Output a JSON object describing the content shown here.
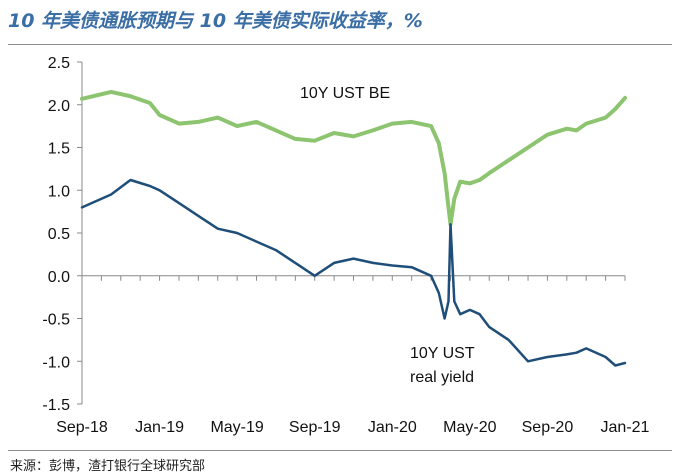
{
  "title": "10 年美债通胀预期与 10 年美债实际收益率，%",
  "source": "来源：彭博，渣打银行全球研究部",
  "chart_data": {
    "type": "line",
    "title": "10 年美债通胀预期与 10 年美债实际收益率，%",
    "xlabel": "",
    "ylabel": "",
    "ylim": [
      -1.5,
      2.5
    ],
    "yticks": [
      "2.5",
      "2.0",
      "1.5",
      "1.0",
      "0.5",
      "0.0",
      "-0.5",
      "-1.0",
      "-1.5"
    ],
    "ytick_values": [
      2.5,
      2.0,
      1.5,
      1.0,
      0.5,
      0.0,
      -0.5,
      -1.0,
      -1.5
    ],
    "xticks": [
      "Sep-18",
      "Jan-19",
      "May-19",
      "Sep-19",
      "Jan-20",
      "May-20",
      "Sep-20",
      "Jan-21"
    ],
    "xlim_months": [
      0,
      28
    ],
    "x_month_offsets": [
      0,
      1.5,
      2.5,
      3.5,
      4,
      5,
      6,
      7,
      8,
      9,
      10,
      11,
      12,
      13,
      14,
      15,
      16,
      17,
      18,
      18.4,
      18.7,
      18.9,
      19,
      19.2,
      19.5,
      20,
      20.5,
      21,
      22,
      23,
      24,
      25,
      25.5,
      26,
      27,
      27.5,
      28
    ],
    "series": [
      {
        "name": "10Y UST BE",
        "color": "#8dc46f",
        "values": [
          2.07,
          2.15,
          2.1,
          2.02,
          1.88,
          1.78,
          1.8,
          1.85,
          1.75,
          1.8,
          1.7,
          1.6,
          1.58,
          1.67,
          1.63,
          1.7,
          1.78,
          1.8,
          1.75,
          1.55,
          1.2,
          0.8,
          0.6,
          0.9,
          1.1,
          1.08,
          1.12,
          1.2,
          1.35,
          1.5,
          1.65,
          1.72,
          1.7,
          1.78,
          1.85,
          1.95,
          2.08
        ]
      },
      {
        "name": "10Y UST real yield",
        "color": "#1f4e79",
        "values": [
          0.8,
          0.95,
          1.12,
          1.05,
          1.0,
          0.85,
          0.7,
          0.55,
          0.5,
          0.4,
          0.3,
          0.15,
          0.0,
          0.15,
          0.2,
          0.15,
          0.12,
          0.1,
          0.0,
          -0.2,
          -0.5,
          -0.3,
          0.6,
          -0.3,
          -0.45,
          -0.4,
          -0.45,
          -0.6,
          -0.75,
          -1.0,
          -0.95,
          -0.92,
          -0.9,
          -0.85,
          -0.95,
          -1.05,
          -1.02
        ]
      }
    ],
    "annotations": {
      "be_label": "10Y UST BE",
      "real_label_line1": "10Y UST",
      "real_label_line2": "real yield"
    }
  }
}
